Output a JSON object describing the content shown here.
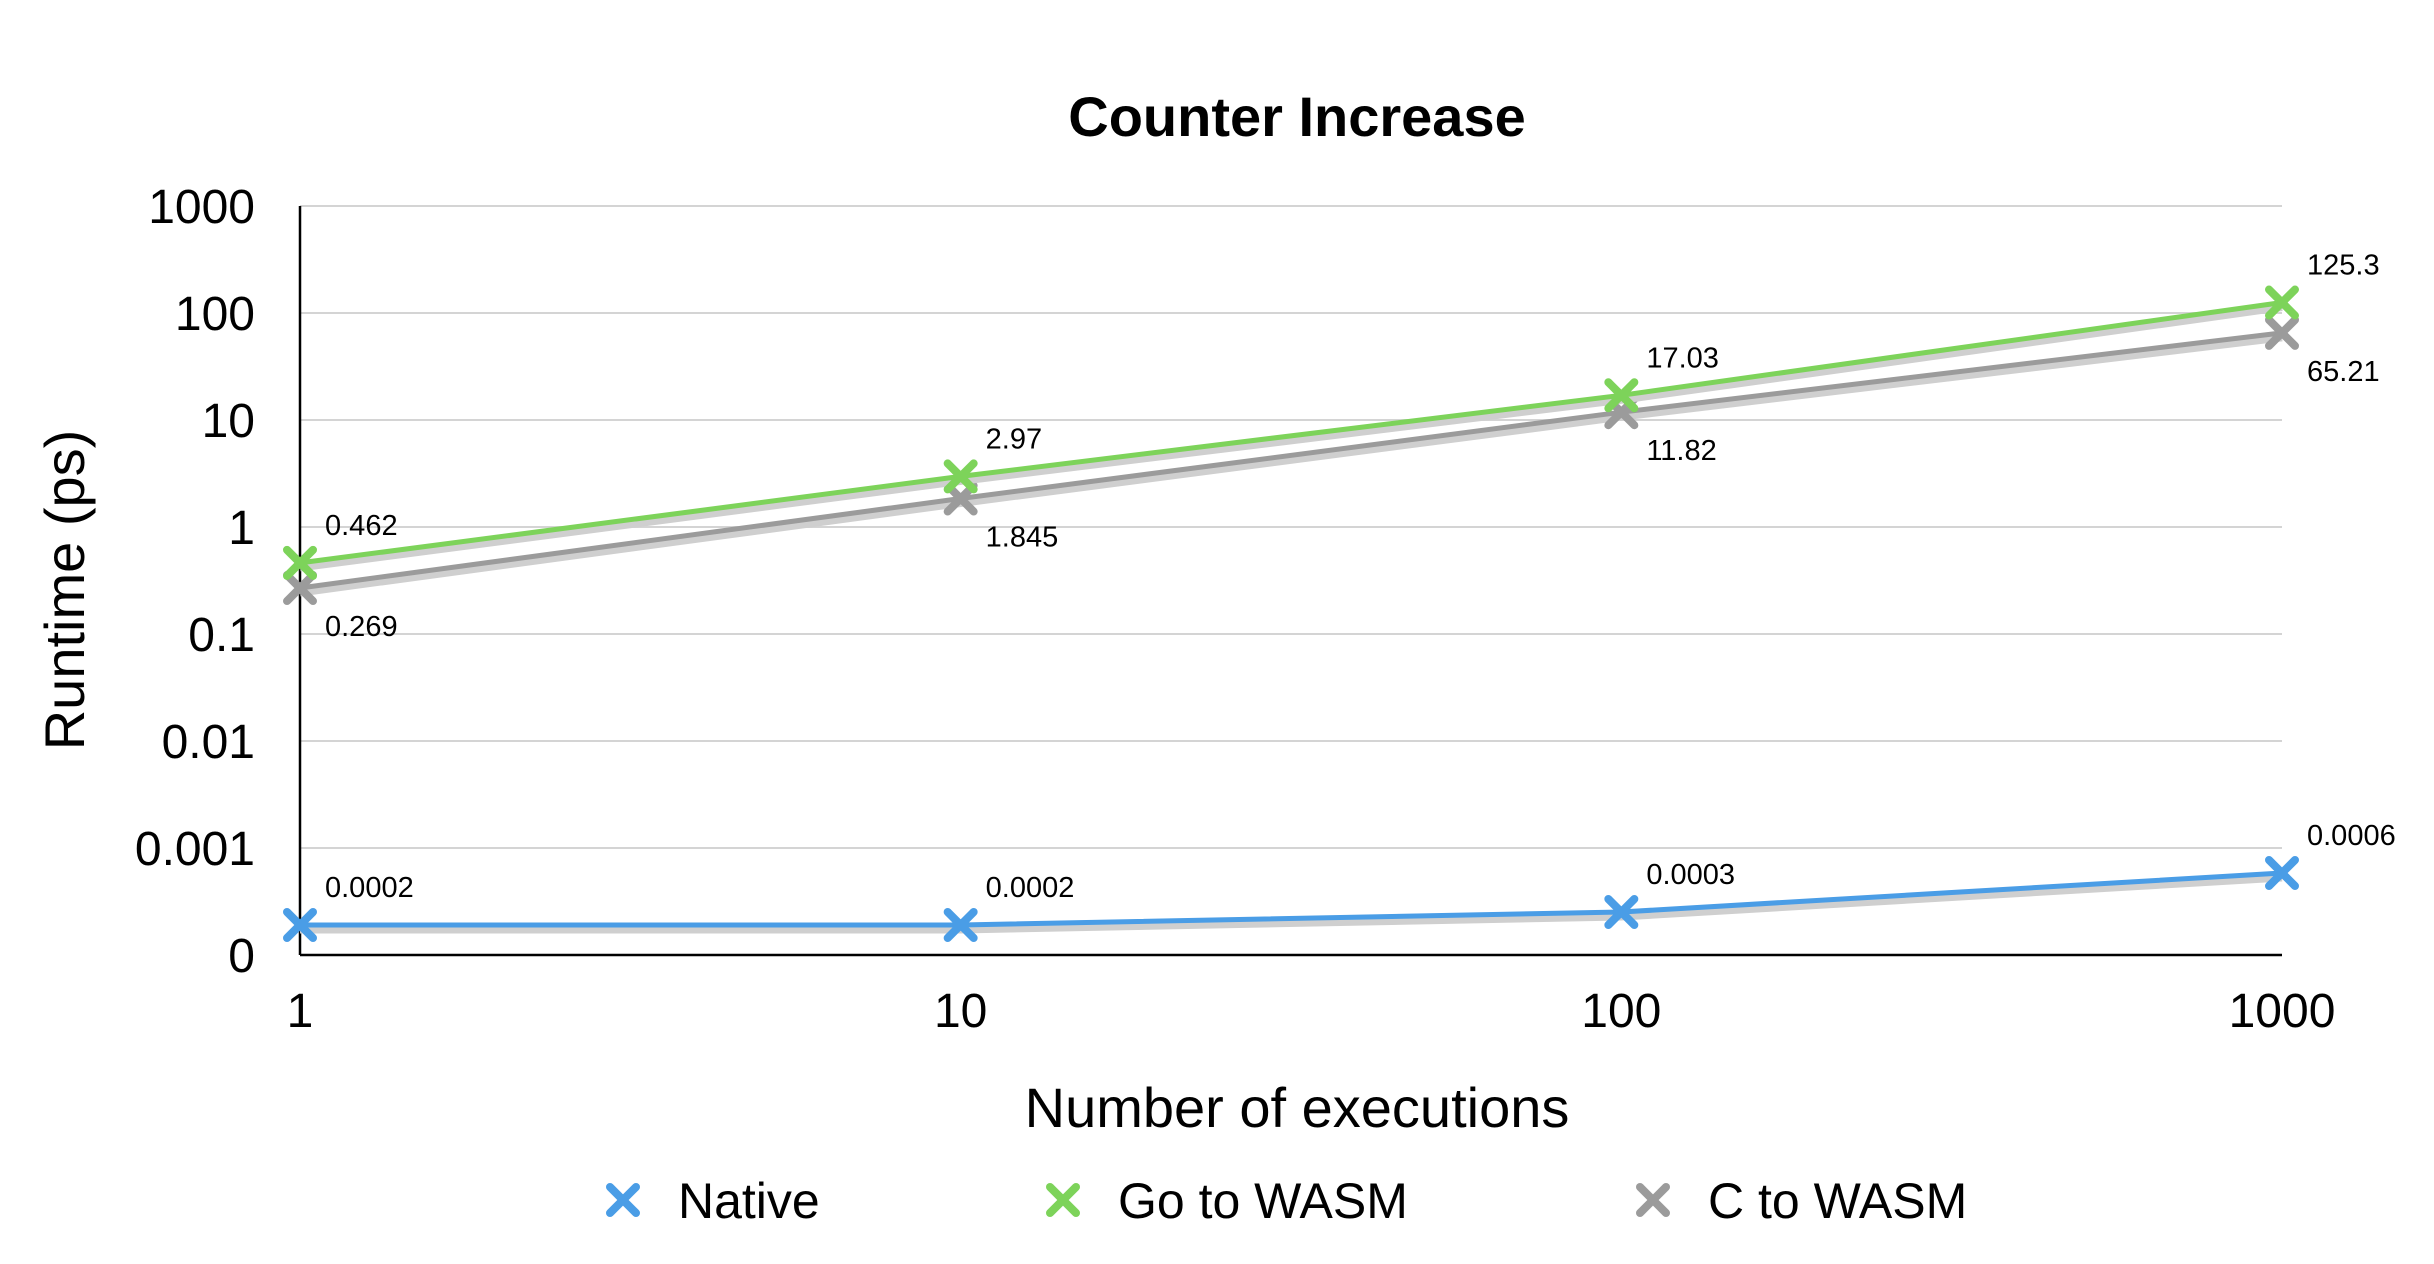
{
  "chart_data": {
    "type": "line",
    "title": "Counter Increase",
    "xlabel": "Number of executions",
    "ylabel": "Runtime (ps)",
    "x": [
      1,
      10,
      100,
      1000
    ],
    "x_tick_labels": [
      "1",
      "10",
      "100",
      "1000"
    ],
    "y_scale": "log",
    "y_tick_labels": [
      "0",
      "0.001",
      "0.01",
      "0.1",
      "1",
      "10",
      "100",
      "1000"
    ],
    "grid": true,
    "legend_position": "bottom",
    "series": [
      {
        "name": "Native",
        "color": "#4a9de6",
        "marker": "x",
        "values": [
          0.0002,
          0.0002,
          0.0003,
          0.0006
        ],
        "labels": [
          "0.0002",
          "0.0002",
          "0.0003",
          "0.0006"
        ],
        "label_side": "above"
      },
      {
        "name": "Go to WASM",
        "color": "#7dd35a",
        "marker": "x",
        "values": [
          0.462,
          2.97,
          17.03,
          125.3
        ],
        "labels": [
          "0.462",
          "2.97",
          "17.03",
          "125.3"
        ],
        "label_side": "above"
      },
      {
        "name": "C to WASM",
        "color": "#9b9b9b",
        "marker": "x",
        "values": [
          0.269,
          1.845,
          11.82,
          65.21
        ],
        "labels": [
          "0.269",
          "1.845",
          "11.82",
          "65.21"
        ],
        "label_side": "below"
      }
    ]
  }
}
